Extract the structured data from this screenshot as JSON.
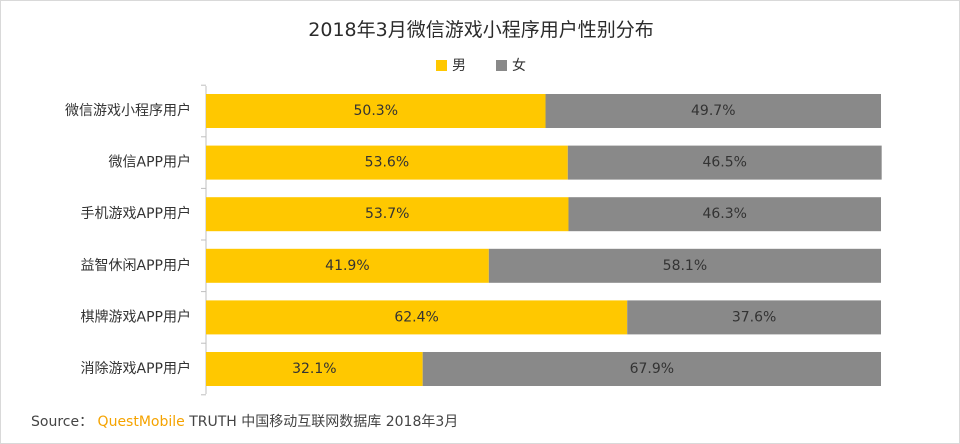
{
  "chart_data": {
    "type": "bar",
    "orientation": "horizontal",
    "stacked": true,
    "title": "2018年3月微信游戏小程序用户性别分布",
    "categories": [
      "微信游戏小程序用户",
      "微信APP用户",
      "手机游戏APP用户",
      "益智休闲APP用户",
      "棋牌游戏APP用户",
      "消除游戏APP用户"
    ],
    "series": [
      {
        "name": "男",
        "color": "#ffc800",
        "values": [
          50.3,
          53.6,
          53.7,
          41.9,
          62.4,
          32.1
        ],
        "labels": [
          "50.3%",
          "53.6%",
          "53.7%",
          "41.9%",
          "62.4%",
          "32.1%"
        ]
      },
      {
        "name": "女",
        "color": "#898989",
        "values": [
          49.7,
          46.5,
          46.3,
          58.1,
          37.6,
          67.9
        ],
        "labels": [
          "49.7%",
          "46.5%",
          "46.3%",
          "58.1%",
          "37.6%",
          "67.9%"
        ]
      }
    ],
    "xlim": [
      0,
      100
    ],
    "legend": "top-center",
    "grid": false
  },
  "source": {
    "prefix": "Source：",
    "brand": "QuestMobile",
    "text": "TRUTH 中国移动互联网数据库 2018年3月"
  }
}
